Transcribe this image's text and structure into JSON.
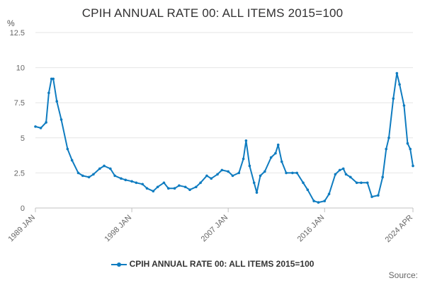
{
  "chart_data": {
    "type": "line",
    "title": "CPIH ANNUAL RATE 00: ALL ITEMS 2015=100",
    "ylabel": "%",
    "ylim": [
      0,
      12.5
    ],
    "yticks": [
      0,
      2.5,
      5,
      7.5,
      10,
      12.5
    ],
    "ytick_labels": [
      "0",
      "2.5",
      "5",
      "7.5",
      "10",
      "12.5"
    ],
    "xlim": [
      "1989-01",
      "2024-04"
    ],
    "xticks": [
      "1989-01",
      "1998-01",
      "2007-01",
      "2016-01",
      "2024-04"
    ],
    "xtick_labels": [
      "1989 JAN",
      "1998 JAN",
      "2007 JAN",
      "2016 JAN",
      "2024 APR"
    ],
    "grid": "horizontal",
    "legend": "bottom",
    "color": "#0f7cc0",
    "series": [
      {
        "name": "CPIH ANNUAL RATE 00: ALL ITEMS 2015=100",
        "x": [
          "1989-01",
          "1989-07",
          "1990-01",
          "1990-04",
          "1990-07",
          "1990-09",
          "1991-01",
          "1991-06",
          "1992-01",
          "1992-06",
          "1993-01",
          "1993-06",
          "1994-01",
          "1994-06",
          "1995-01",
          "1995-06",
          "1996-01",
          "1996-06",
          "1997-01",
          "1997-06",
          "1998-01",
          "1998-06",
          "1999-01",
          "1999-06",
          "2000-01",
          "2000-06",
          "2001-01",
          "2001-06",
          "2002-01",
          "2002-06",
          "2003-01",
          "2003-06",
          "2004-01",
          "2004-06",
          "2005-01",
          "2005-06",
          "2006-01",
          "2006-06",
          "2007-01",
          "2007-06",
          "2008-01",
          "2008-06",
          "2008-09",
          "2009-01",
          "2009-06",
          "2009-09",
          "2010-01",
          "2010-06",
          "2011-01",
          "2011-06",
          "2011-09",
          "2012-01",
          "2012-06",
          "2013-01",
          "2013-06",
          "2014-01",
          "2014-06",
          "2015-01",
          "2015-06",
          "2016-01",
          "2016-06",
          "2017-01",
          "2017-06",
          "2017-10",
          "2018-01",
          "2018-06",
          "2019-01",
          "2019-06",
          "2020-01",
          "2020-06",
          "2021-01",
          "2021-06",
          "2021-10",
          "2022-01",
          "2022-06",
          "2022-10",
          "2023-01",
          "2023-06",
          "2023-10",
          "2024-01",
          "2024-04"
        ],
        "values": [
          5.8,
          5.7,
          6.1,
          8.2,
          9.2,
          9.2,
          7.6,
          6.3,
          4.2,
          3.4,
          2.5,
          2.3,
          2.2,
          2.4,
          2.8,
          3.0,
          2.8,
          2.3,
          2.1,
          2.0,
          1.9,
          1.8,
          1.7,
          1.4,
          1.2,
          1.5,
          1.8,
          1.4,
          1.4,
          1.6,
          1.5,
          1.3,
          1.5,
          1.8,
          2.3,
          2.1,
          2.4,
          2.7,
          2.6,
          2.3,
          2.5,
          3.5,
          4.8,
          3.0,
          1.8,
          1.1,
          2.3,
          2.6,
          3.6,
          3.9,
          4.5,
          3.3,
          2.5,
          2.5,
          2.5,
          1.8,
          1.3,
          0.5,
          0.4,
          0.5,
          1.0,
          2.4,
          2.7,
          2.8,
          2.4,
          2.2,
          1.8,
          1.8,
          1.8,
          0.8,
          0.9,
          2.2,
          4.2,
          5.0,
          7.8,
          9.6,
          8.8,
          7.3,
          4.6,
          4.2,
          3.0
        ]
      }
    ]
  },
  "source_label": "Source:"
}
